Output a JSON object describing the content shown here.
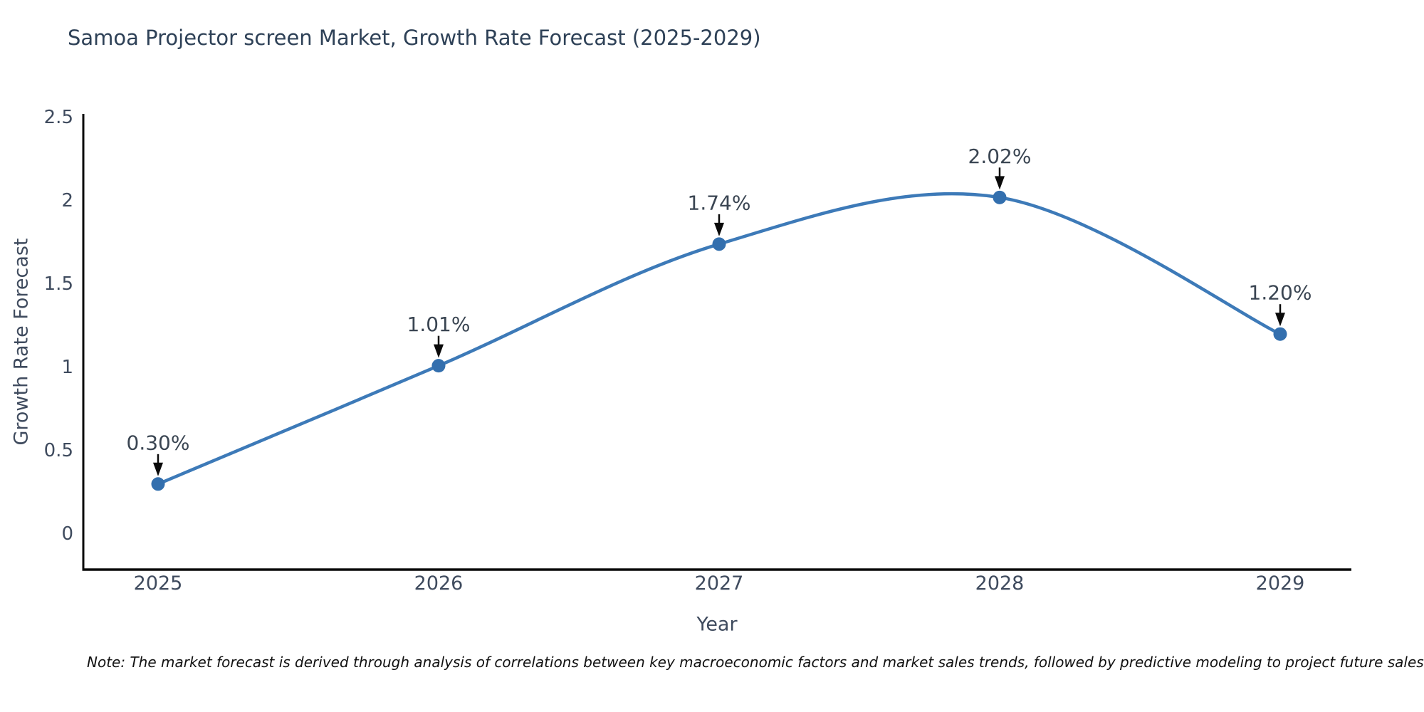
{
  "note": {
    "text": "Note: The market forecast is derived through analysis of correlations between key macroeconomic factors and market sales trends, followed by predictive modeling to project future sales"
  },
  "chart_data": {
    "type": "line",
    "title": "Samoa Projector screen Market, Growth Rate Forecast (2025-2029)",
    "xlabel": "Year",
    "ylabel": "Growth Rate Forecast",
    "x": [
      2025,
      2026,
      2027,
      2028,
      2029
    ],
    "x_tick_labels": [
      "2025",
      "2026",
      "2027",
      "2028",
      "2029"
    ],
    "values": [
      0.3,
      1.01,
      1.74,
      2.02,
      1.2
    ],
    "point_labels": [
      "0.30%",
      "1.01%",
      "1.74%",
      "2.02%",
      "1.20%"
    ],
    "y_ticks": [
      0,
      0.5,
      1,
      1.5,
      2,
      2.5
    ],
    "y_tick_labels": [
      "0",
      "0.5",
      "1",
      "1.5",
      "2",
      "2.5"
    ],
    "ylim": [
      0,
      2.5
    ],
    "grid": false,
    "legend": "none",
    "smooth_spline": true,
    "line_color": "#3d7ab8",
    "marker_color": "#336fae",
    "axis_color": "#0a0a0a",
    "tick_label_color": "#3f4b5e",
    "axis_title_color": "#3f4b5e",
    "annotation_color": "#3a4552",
    "arrow_color": "#0a0a0a"
  }
}
